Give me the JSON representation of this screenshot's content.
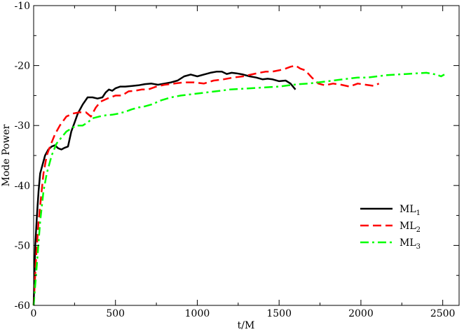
{
  "chart_data": {
    "type": "line",
    "xlabel": "t/M",
    "ylabel": "Mode Power",
    "xlim": [
      0,
      2600
    ],
    "ylim": [
      -60,
      -10
    ],
    "xticks": [
      "0",
      "500",
      "1000",
      "1500",
      "2000",
      "2500"
    ],
    "yticks": [
      "-60",
      "-50",
      "-40",
      "-30",
      "-20",
      "-10"
    ],
    "grid": false,
    "legend_position": "lower-right",
    "series": [
      {
        "label_main": "ML",
        "label_sub": "1",
        "color": "#000000",
        "dash": "solid",
        "x": [
          0,
          10,
          20,
          30,
          40,
          55,
          70,
          90,
          110,
          130,
          150,
          170,
          190,
          210,
          230,
          250,
          270,
          300,
          330,
          360,
          390,
          420,
          440,
          460,
          480,
          500,
          530,
          560,
          600,
          640,
          680,
          720,
          760,
          800,
          840,
          880,
          920,
          960,
          1000,
          1040,
          1080,
          1120,
          1150,
          1180,
          1210,
          1240,
          1280,
          1320,
          1360,
          1400,
          1430,
          1460,
          1500,
          1540,
          1570,
          1600
        ],
        "y": [
          -60,
          -50,
          -45,
          -41,
          -38,
          -36.5,
          -35,
          -34,
          -33.5,
          -33.3,
          -33.8,
          -34,
          -33.7,
          -33.5,
          -31,
          -29.5,
          -28,
          -26.5,
          -25.3,
          -25.3,
          -25.5,
          -25.3,
          -24.5,
          -24,
          -24.2,
          -23.8,
          -23.5,
          -23.5,
          -23.4,
          -23.3,
          -23.1,
          -23,
          -23.2,
          -23,
          -22.8,
          -22.5,
          -21.8,
          -21.5,
          -21.8,
          -21.5,
          -21.2,
          -21,
          -21,
          -21.4,
          -21.2,
          -21.3,
          -21.5,
          -21.8,
          -22,
          -22.3,
          -22.2,
          -22.3,
          -22.6,
          -22.5,
          -23,
          -24
        ]
      },
      {
        "label_main": "ML",
        "label_sub": "2",
        "color": "#ff0000",
        "dash": "dashed",
        "x": [
          0,
          15,
          30,
          45,
          60,
          80,
          100,
          130,
          160,
          200,
          240,
          280,
          320,
          350,
          380,
          410,
          450,
          500,
          540,
          580,
          620,
          660,
          700,
          750,
          800,
          860,
          920,
          980,
          1040,
          1100,
          1160,
          1220,
          1280,
          1330,
          1380,
          1420,
          1460,
          1500,
          1540,
          1570,
          1600,
          1630,
          1660,
          1700,
          1740,
          1780,
          1830,
          1880,
          1930,
          1980,
          2030,
          2080,
          2110
        ],
        "y": [
          -60,
          -52,
          -46,
          -42,
          -38,
          -35,
          -33.5,
          -31.5,
          -30,
          -28.5,
          -28,
          -27.8,
          -27.8,
          -28.5,
          -27,
          -26,
          -25.5,
          -25,
          -25,
          -24.3,
          -24.2,
          -24,
          -24,
          -23.5,
          -23.2,
          -23,
          -22.8,
          -22.8,
          -23,
          -22.5,
          -22.3,
          -22,
          -21.8,
          -21.5,
          -21.2,
          -21,
          -21,
          -20.8,
          -20.5,
          -20.2,
          -20,
          -20.5,
          -20.8,
          -22,
          -23,
          -23.3,
          -23,
          -23.2,
          -23.5,
          -23,
          -23.2,
          -23.4,
          -23
        ]
      },
      {
        "label_main": "ML",
        "label_sub": "3",
        "color": "#00ff00",
        "dash": "dashdot",
        "x": [
          0,
          20,
          40,
          60,
          80,
          110,
          140,
          170,
          200,
          230,
          260,
          300,
          330,
          360,
          400,
          440,
          480,
          520,
          560,
          600,
          640,
          680,
          720,
          780,
          840,
          900,
          960,
          1020,
          1080,
          1140,
          1200,
          1260,
          1320,
          1380,
          1440,
          1500,
          1560,
          1620,
          1680,
          1740,
          1800,
          1860,
          1920,
          1980,
          2040,
          2100,
          2160,
          2220,
          2280,
          2340,
          2400,
          2460,
          2490,
          2510
        ],
        "y": [
          -60,
          -53,
          -46,
          -41,
          -38,
          -35,
          -33,
          -32,
          -31,
          -30.5,
          -30,
          -30,
          -29.5,
          -28.8,
          -28.5,
          -28.3,
          -28.2,
          -28,
          -27.7,
          -27.3,
          -27,
          -26.8,
          -26.5,
          -25.8,
          -25.3,
          -25,
          -24.8,
          -24.6,
          -24.4,
          -24.2,
          -24,
          -23.9,
          -23.8,
          -23.7,
          -23.6,
          -23.5,
          -23.3,
          -23.1,
          -23,
          -22.8,
          -22.6,
          -22.4,
          -22.2,
          -22,
          -22,
          -21.8,
          -21.6,
          -21.5,
          -21.4,
          -21.3,
          -21.2,
          -21.5,
          -21.8,
          -21.5
        ]
      }
    ]
  }
}
